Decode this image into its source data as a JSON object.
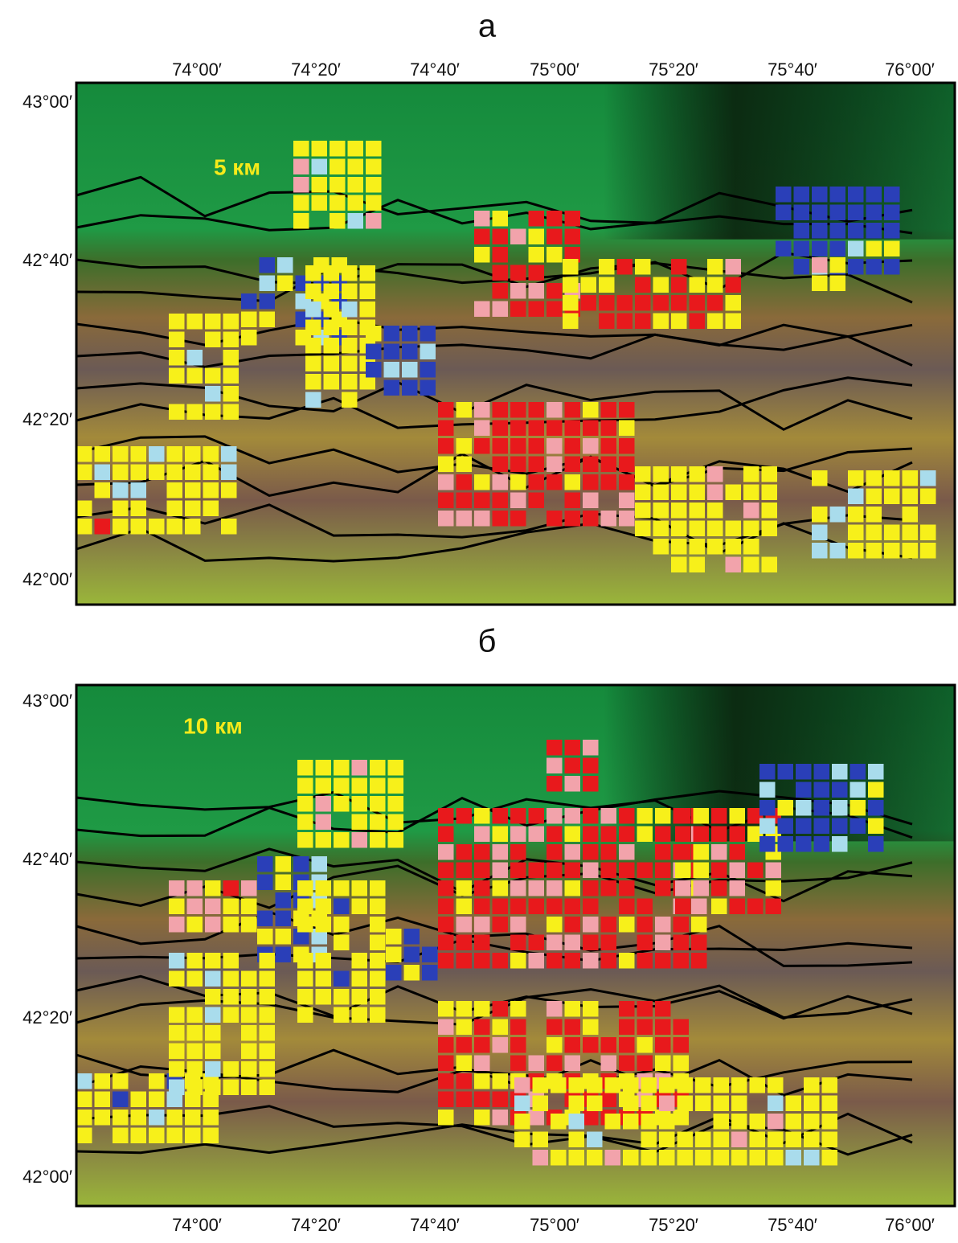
{
  "panels": [
    {
      "label": "а",
      "scale_label": "5 км",
      "x_ticks": [
        "74°00′",
        "74°20′",
        "74°40′",
        "75°00′",
        "75°20′",
        "75°40′",
        "76°00′"
      ],
      "y_ticks": [
        "43°00′",
        "42°40′",
        "42°20′",
        "42°00′"
      ]
    },
    {
      "label": "б",
      "scale_label": "10 км",
      "x_ticks": [
        "74°00′",
        "74°20′",
        "74°40′",
        "75°00′",
        "75°20′",
        "75°40′",
        "76°00′"
      ],
      "y_ticks": [
        "43°00′",
        "42°40′",
        "42°20′",
        "42°00′"
      ]
    }
  ]
}
